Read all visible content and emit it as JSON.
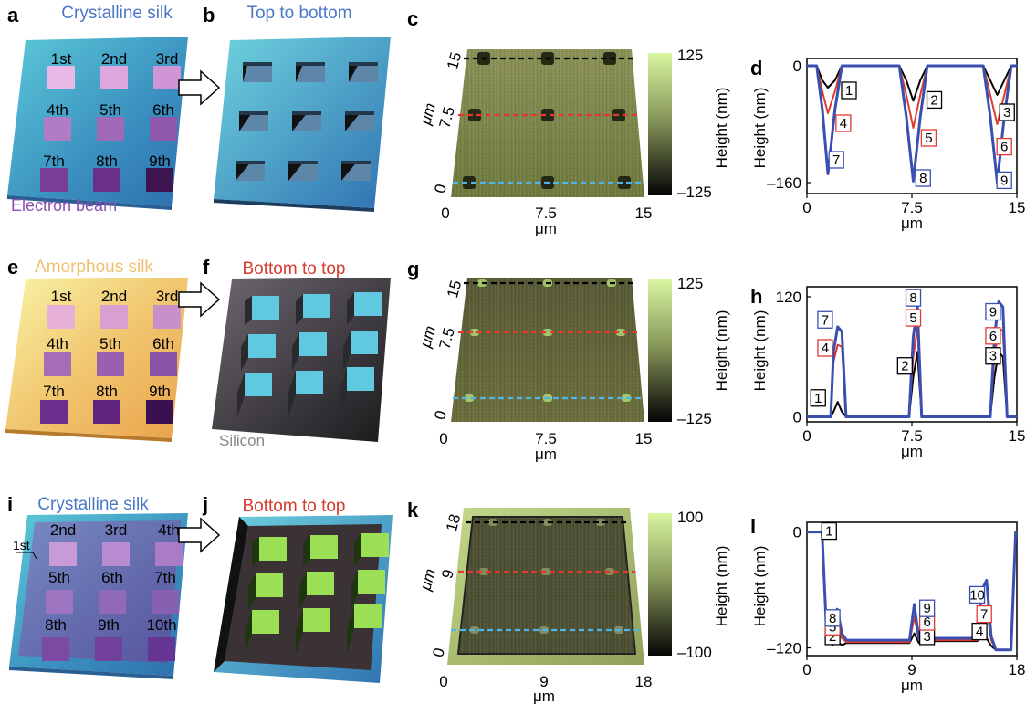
{
  "colors": {
    "blue_title": "#4a78c8",
    "red_title": "#d63a2e",
    "orange_title": "#f0c070",
    "purple_label": "#8a4fb0",
    "gray_label": "#888888",
    "series_black": "#000000",
    "series_red": "#e03a2f",
    "series_blue": "#3a4fb0"
  },
  "panels": {
    "a": {
      "letter": "a",
      "title": "Crystalline silk",
      "cells": [
        "1st",
        "2nd",
        "3rd",
        "4th",
        "5th",
        "6th",
        "7th",
        "8th",
        "9th"
      ],
      "bottom_label": "Electron beam"
    },
    "b": {
      "letter": "b",
      "title": "Top to bottom"
    },
    "c": {
      "letter": "c",
      "xticks": [
        "0",
        "7.5",
        "15"
      ],
      "yticks": [
        "0",
        "7.5",
        "15"
      ],
      "xlabel": "μm",
      "ylabel": "μm",
      "cbar": [
        "125",
        "–125"
      ],
      "cbar_label": "Height (nm)"
    },
    "d": {
      "letter": "d",
      "ylabel": "Height (nm)",
      "xlabel": "μm",
      "xticks": [
        "0",
        "7.5",
        "15"
      ],
      "yticks": [
        "0",
        "–160"
      ],
      "boxes": [
        "1",
        "2",
        "3",
        "4",
        "5",
        "6",
        "7",
        "8",
        "9"
      ]
    },
    "e": {
      "letter": "e",
      "title": "Amorphous silk",
      "cells": [
        "1st",
        "2nd",
        "3rd",
        "4th",
        "5th",
        "6th",
        "7th",
        "8th",
        "9th"
      ]
    },
    "f": {
      "letter": "f",
      "title": "Bottom to top",
      "substrate_label": "Silicon"
    },
    "g": {
      "letter": "g",
      "xticks": [
        "0",
        "7.5",
        "15"
      ],
      "yticks": [
        "0",
        "7.5",
        "15"
      ],
      "xlabel": "μm",
      "ylabel": "μm",
      "cbar": [
        "125",
        "–125"
      ],
      "cbar_label": "Height (nm)"
    },
    "h": {
      "letter": "h",
      "ylabel": "Height (nm)",
      "xlabel": "μm",
      "xticks": [
        "0",
        "7.5",
        "15"
      ],
      "yticks": [
        "120",
        "0"
      ],
      "boxes": [
        "1",
        "2",
        "3",
        "4",
        "5",
        "6",
        "7",
        "8",
        "9"
      ]
    },
    "i": {
      "letter": "i",
      "title": "Crystalline silk",
      "cells": [
        "2nd",
        "3rd",
        "4th",
        "5th",
        "6th",
        "7th",
        "8th",
        "9th",
        "10th"
      ],
      "first_label": "1st"
    },
    "j": {
      "letter": "j",
      "title": "Bottom to top"
    },
    "k": {
      "letter": "k",
      "xticks": [
        "0",
        "9",
        "18"
      ],
      "yticks": [
        "0",
        "9",
        "18"
      ],
      "xlabel": "μm",
      "ylabel": "μm",
      "cbar": [
        "100",
        "–100"
      ],
      "cbar_label": "Height (nm)"
    },
    "l": {
      "letter": "l",
      "ylabel": "Height (nm)",
      "xlabel": "μm",
      "xticks": [
        "0",
        "9",
        "18"
      ],
      "yticks": [
        "0",
        "–120"
      ],
      "boxes": [
        "1",
        "2",
        "3",
        "4",
        "5",
        "6",
        "7",
        "8",
        "9",
        "10"
      ]
    }
  },
  "chart_data": [
    {
      "type": "line",
      "panel": "d",
      "xlabel": "μm",
      "ylabel": "Height (nm)",
      "xlim": [
        0,
        15
      ],
      "ylim": [
        -175,
        10
      ],
      "series": [
        {
          "color": "black",
          "x": [
            0,
            0.7,
            1.1,
            1.5,
            2.0,
            2.5,
            6.6,
            7.1,
            7.6,
            8.1,
            8.6,
            12.6,
            13.1,
            13.6,
            14.1,
            14.6,
            15
          ],
          "y": [
            0,
            0,
            -20,
            -30,
            -20,
            0,
            0,
            -20,
            -48,
            -20,
            0,
            0,
            -20,
            -40,
            -20,
            0,
            0
          ]
        },
        {
          "color": "red",
          "x": [
            0,
            0.7,
            1.1,
            1.5,
            2.0,
            2.5,
            6.6,
            7.1,
            7.6,
            8.1,
            8.6,
            12.6,
            13.1,
            13.6,
            14.1,
            14.6,
            15
          ],
          "y": [
            0,
            0,
            -35,
            -65,
            -35,
            0,
            0,
            -40,
            -85,
            -40,
            0,
            0,
            -40,
            -80,
            -40,
            0,
            0
          ]
        },
        {
          "color": "blue",
          "x": [
            0,
            0.7,
            1.1,
            1.5,
            2.0,
            2.5,
            6.6,
            7.1,
            7.6,
            8.1,
            8.6,
            12.6,
            13.1,
            13.6,
            14.1,
            14.6,
            15
          ],
          "y": [
            0,
            0,
            -60,
            -148,
            -60,
            0,
            0,
            -70,
            -158,
            -70,
            0,
            0,
            -70,
            -160,
            -70,
            0,
            0
          ]
        }
      ]
    },
    {
      "type": "line",
      "panel": "h",
      "xlabel": "μm",
      "ylabel": "Height (nm)",
      "xlim": [
        0,
        15
      ],
      "ylim": [
        -5,
        130
      ],
      "series": [
        {
          "color": "black",
          "x": [
            0,
            1.7,
            1.9,
            2.2,
            2.5,
            2.8,
            7.3,
            7.6,
            7.9,
            8.2,
            13.1,
            13.4,
            13.7,
            14.0,
            14.3,
            15
          ],
          "y": [
            0,
            0,
            5,
            15,
            5,
            0,
            0,
            40,
            65,
            0,
            0,
            40,
            65,
            60,
            0,
            0
          ]
        },
        {
          "color": "red",
          "x": [
            0,
            1.7,
            1.9,
            2.2,
            2.5,
            2.8,
            7.3,
            7.6,
            7.9,
            8.2,
            13.1,
            13.4,
            13.7,
            14.0,
            14.3,
            15
          ],
          "y": [
            0,
            0,
            55,
            72,
            70,
            0,
            0,
            60,
            90,
            0,
            0,
            60,
            88,
            86,
            0,
            0
          ]
        },
        {
          "color": "blue",
          "x": [
            0,
            1.7,
            1.9,
            2.2,
            2.5,
            2.8,
            7.3,
            7.6,
            7.9,
            8.2,
            13.1,
            13.4,
            13.7,
            14.0,
            14.3,
            15
          ],
          "y": [
            0,
            0,
            65,
            90,
            85,
            0,
            0,
            80,
            110,
            0,
            0,
            80,
            115,
            110,
            0,
            0
          ]
        }
      ]
    },
    {
      "type": "line",
      "panel": "l",
      "xlabel": "μm",
      "ylabel": "Height (nm)",
      "xlim": [
        0,
        18
      ],
      "ylim": [
        -128,
        10
      ],
      "series": [
        {
          "color": "black",
          "x": [
            0,
            1.3,
            1.7,
            2.2,
            2.6,
            3.0,
            3.4,
            8.8,
            9.2,
            9.6,
            10.0,
            14.6,
            15.0,
            15.4,
            15.8,
            16.2,
            17.5,
            17.9,
            18
          ],
          "y": [
            0,
            0,
            -112,
            -117,
            -114,
            -117,
            -115,
            -115,
            -105,
            -115,
            -113,
            -113,
            -105,
            -110,
            -118,
            -122,
            -122,
            0,
            0
          ]
        },
        {
          "color": "red",
          "x": [
            0,
            1.3,
            1.7,
            2.2,
            2.6,
            3.0,
            3.4,
            8.8,
            9.2,
            9.6,
            10.0,
            14.6,
            15.0,
            15.4,
            15.8,
            16.2,
            17.5,
            17.9,
            18
          ],
          "y": [
            0,
            0,
            -110,
            -112,
            -92,
            -110,
            -114,
            -114,
            -88,
            -112,
            -112,
            -112,
            -85,
            -78,
            -112,
            -122,
            -122,
            0,
            0
          ]
        },
        {
          "color": "blue",
          "x": [
            0,
            1.3,
            1.7,
            2.2,
            2.6,
            3.0,
            3.4,
            8.8,
            9.2,
            9.6,
            10.0,
            14.6,
            15.0,
            15.4,
            15.8,
            16.2,
            17.5,
            17.9,
            18
          ],
          "y": [
            0,
            0,
            -108,
            -110,
            -80,
            -105,
            -112,
            -112,
            -75,
            -110,
            -110,
            -110,
            -60,
            -50,
            -108,
            -122,
            -122,
            0,
            0
          ]
        }
      ]
    }
  ]
}
